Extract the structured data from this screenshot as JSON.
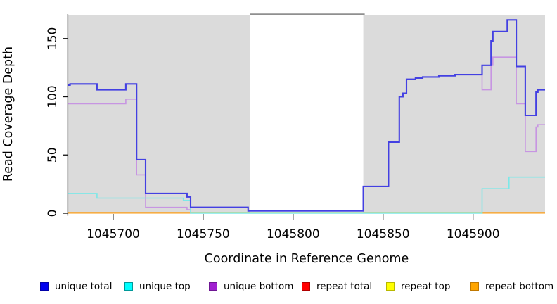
{
  "figure": {
    "y_axis": {
      "title": "Read Coverage Depth",
      "ticks": [
        0,
        50,
        100,
        150
      ],
      "tick_labels": [
        "0",
        "50",
        "100",
        "150"
      ]
    },
    "x_axis": {
      "title": "Coordinate in Reference Genome",
      "ticks": [
        1045700,
        1045750,
        1045800,
        1045850,
        1045900
      ],
      "tick_labels": [
        "1045700",
        "1045750",
        "1045800",
        "1045850",
        "1045900"
      ]
    }
  },
  "chart_data": {
    "type": "line",
    "subtype": "step-coverage",
    "title": "",
    "xlabel": "Coordinate in Reference Genome",
    "ylabel": "Read Coverage Depth",
    "xlim": [
      1045675,
      1045940
    ],
    "ylim": [
      0,
      171
    ],
    "grid": false,
    "legend_position": "bottom",
    "band_color": "#dbdbdb",
    "background_bands": [
      {
        "from": 1045675,
        "to": 1045776,
        "meaning": "gray mappability band (left)"
      },
      {
        "from": 1045839,
        "to": 1045940,
        "meaning": "gray mappability band (right)"
      }
    ],
    "gap": {
      "from": 1045776,
      "to": 1045839,
      "top_line_color": "#8f8f8f",
      "meaning": "white masked region"
    },
    "baseline_segments": [
      {
        "from": 1045675,
        "to": 1045743,
        "color": "#fb9e18"
      },
      {
        "from": 1045743,
        "to": 1045905,
        "color": "#9adba3"
      },
      {
        "from": 1045905,
        "to": 1045940,
        "color": "#fb9e18"
      }
    ],
    "series": [
      {
        "name": "unique total",
        "color": "#4340e2",
        "width": 2.1,
        "visible": true,
        "z": 3,
        "steps": [
          [
            1045675,
            110
          ],
          [
            1045676,
            111
          ],
          [
            1045691,
            106
          ],
          [
            1045707,
            111
          ],
          [
            1045713,
            46
          ],
          [
            1045718,
            17
          ],
          [
            1045741,
            14
          ],
          [
            1045743,
            5
          ],
          [
            1045775,
            2
          ],
          [
            1045839,
            23
          ],
          [
            1045853,
            61
          ],
          [
            1045859,
            100
          ],
          [
            1045861,
            103
          ],
          [
            1045863,
            115
          ],
          [
            1045868,
            116
          ],
          [
            1045872,
            117
          ],
          [
            1045881,
            118
          ],
          [
            1045890,
            119
          ],
          [
            1045905,
            127
          ],
          [
            1045910,
            148
          ],
          [
            1045911,
            156
          ],
          [
            1045919,
            166
          ],
          [
            1045924,
            126
          ],
          [
            1045929,
            84
          ],
          [
            1045935,
            104
          ],
          [
            1045936,
            106
          ],
          [
            1045940,
            106
          ]
        ]
      },
      {
        "name": "unique top",
        "color": "#7ce8e8",
        "width": 1.6,
        "visible": true,
        "z": 2,
        "steps": [
          [
            1045675,
            17
          ],
          [
            1045691,
            13
          ],
          [
            1045739,
            11
          ],
          [
            1045743,
            0
          ],
          [
            1045905,
            21
          ],
          [
            1045920,
            31
          ],
          [
            1045940,
            31
          ]
        ]
      },
      {
        "name": "unique bottom",
        "color": "#c795e2",
        "width": 1.6,
        "visible": true,
        "z": 1,
        "steps": [
          [
            1045675,
            94
          ],
          [
            1045707,
            98
          ],
          [
            1045713,
            33
          ],
          [
            1045718,
            5
          ],
          [
            1045741,
            3
          ],
          [
            1045743,
            5
          ],
          [
            1045775,
            2
          ],
          [
            1045839,
            23
          ],
          [
            1045853,
            61
          ],
          [
            1045859,
            100
          ],
          [
            1045861,
            103
          ],
          [
            1045863,
            115
          ],
          [
            1045868,
            116
          ],
          [
            1045872,
            117
          ],
          [
            1045881,
            118
          ],
          [
            1045890,
            119
          ],
          [
            1045905,
            106
          ],
          [
            1045910,
            127
          ],
          [
            1045911,
            134
          ],
          [
            1045924,
            94
          ],
          [
            1045929,
            53
          ],
          [
            1045935,
            74
          ],
          [
            1045936,
            76
          ],
          [
            1045940,
            76
          ]
        ]
      },
      {
        "name": "repeat total",
        "color": "#ff0000",
        "width": 1.6,
        "visible": false,
        "z": 0,
        "steps": [
          [
            1045675,
            0
          ],
          [
            1045940,
            0
          ]
        ]
      },
      {
        "name": "repeat top",
        "color": "#ffff00",
        "width": 1.6,
        "visible": false,
        "z": 0,
        "steps": [
          [
            1045675,
            0
          ],
          [
            1045940,
            0
          ]
        ]
      },
      {
        "name": "repeat bottom",
        "color": "#ffa500",
        "width": 1.6,
        "visible": false,
        "z": 0,
        "steps": [
          [
            1045675,
            0
          ],
          [
            1045940,
            0
          ]
        ]
      }
    ]
  },
  "legend": {
    "items": [
      {
        "label": "unique total",
        "color": "#0000ee",
        "border": "#0000a8"
      },
      {
        "label": "unique top",
        "color": "#00ffff",
        "border": "#009999"
      },
      {
        "label": "unique bottom",
        "color": "#a020d0",
        "border": "#6e1693"
      },
      {
        "label": "repeat total",
        "color": "#ff0000",
        "border": "#b00000"
      },
      {
        "label": "repeat top",
        "color": "#ffff00",
        "border": "#b8b800"
      },
      {
        "label": "repeat bottom",
        "color": "#ffa500",
        "border": "#c07800"
      }
    ]
  }
}
